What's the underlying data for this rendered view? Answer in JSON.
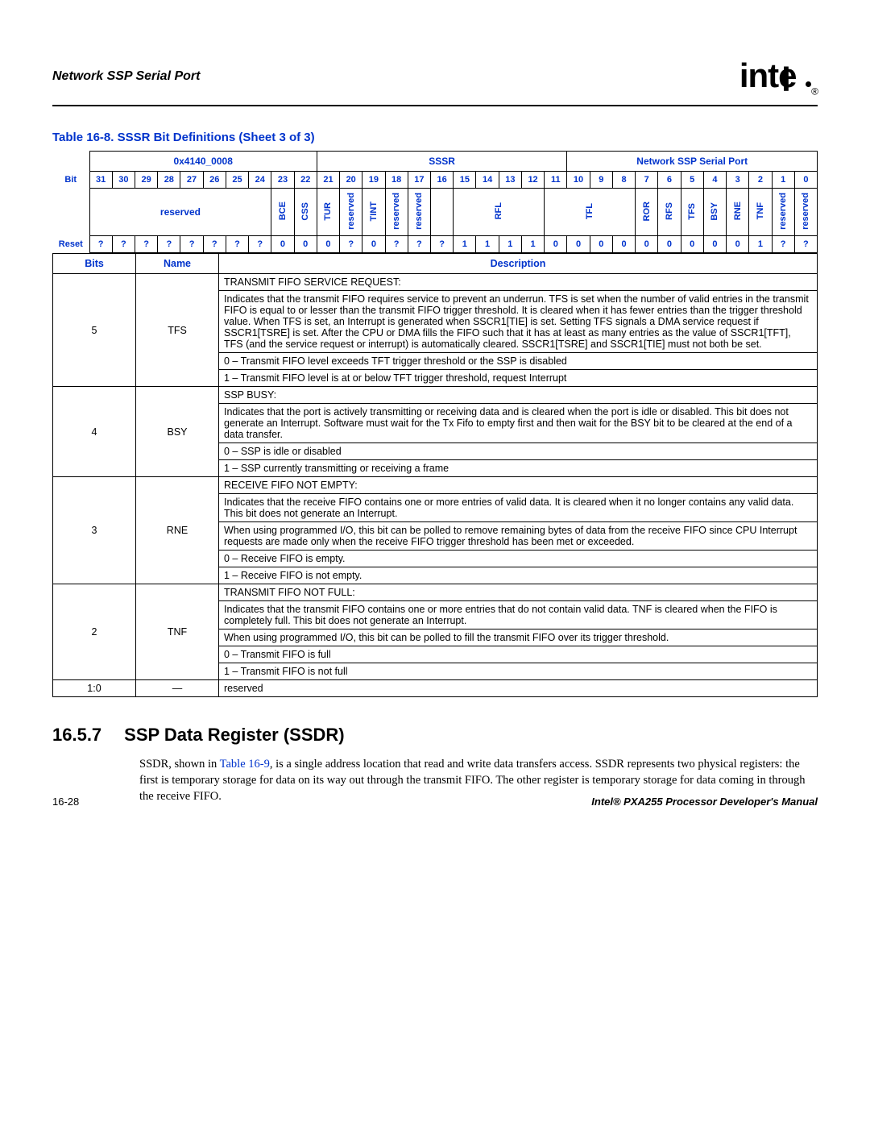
{
  "header": {
    "section": "Network SSP Serial Port",
    "logo": "intel",
    "registered": "®"
  },
  "table_caption": "Table 16-8. SSSR Bit Definitions (Sheet 3 of 3)",
  "reg_header": {
    "address": "0x4140_0008",
    "reg_name": "SSSR",
    "port_name": "Network SSP Serial Port"
  },
  "bit_label": "Bit",
  "reset_label": "Reset",
  "bits": [
    "31",
    "30",
    "29",
    "28",
    "27",
    "26",
    "25",
    "24",
    "23",
    "22",
    "21",
    "20",
    "19",
    "18",
    "17",
    "16",
    "15",
    "14",
    "13",
    "12",
    "11",
    "10",
    "9",
    "8",
    "7",
    "6",
    "5",
    "4",
    "3",
    "2",
    "1",
    "0"
  ],
  "fields": [
    {
      "span": 8,
      "label": "reserved",
      "vert": false
    },
    {
      "span": 1,
      "label": "BCE",
      "vert": true
    },
    {
      "span": 1,
      "label": "CSS",
      "vert": true
    },
    {
      "span": 1,
      "label": "TUR",
      "vert": true
    },
    {
      "span": 1,
      "label": "reserved",
      "vert": true
    },
    {
      "span": 1,
      "label": "TINT",
      "vert": true
    },
    {
      "span": 1,
      "label": "reserved",
      "vert": true
    },
    {
      "span": 1,
      "label": "reserved",
      "vert": true
    },
    {
      "span": 1,
      "label": "",
      "vert": false
    },
    {
      "span": 4,
      "label": "RFL",
      "vert": true
    },
    {
      "span": 4,
      "label": "TFL",
      "vert": true
    },
    {
      "span": 1,
      "label": "ROR",
      "vert": true
    },
    {
      "span": 1,
      "label": "RFS",
      "vert": true
    },
    {
      "span": 1,
      "label": "TFS",
      "vert": true
    },
    {
      "span": 1,
      "label": "BSY",
      "vert": true
    },
    {
      "span": 1,
      "label": "RNE",
      "vert": true
    },
    {
      "span": 1,
      "label": "TNF",
      "vert": true
    },
    {
      "span": 1,
      "label": "reserved",
      "vert": true
    },
    {
      "span": 1,
      "label": "reserved",
      "vert": true
    }
  ],
  "reset": [
    "?",
    "?",
    "?",
    "?",
    "?",
    "?",
    "?",
    "?",
    "0",
    "0",
    "0",
    "?",
    "0",
    "?",
    "?",
    "?",
    "1",
    "1",
    "1",
    "1",
    "0",
    "0",
    "0",
    "0",
    "0",
    "0",
    "0",
    "0",
    "0",
    "1",
    "?",
    "?"
  ],
  "desc_headers": {
    "bits": "Bits",
    "name": "Name",
    "desc": "Description"
  },
  "rows": [
    {
      "bits": "5",
      "name": "TFS",
      "lines": [
        "TRANSMIT FIFO SERVICE REQUEST:",
        "Indicates that the transmit FIFO requires service to prevent an underrun. TFS is set when the number of valid entries in the transmit FIFO is equal to or lesser than the transmit FIFO trigger threshold. It is cleared when it has fewer entries than the trigger threshold value. When TFS is set, an Interrupt is generated when SSCR1[TIE] is set. Setting TFS signals a DMA service request if SSCR1[TSRE] is set. After the CPU or DMA fills the FIFO such that it has at least as many entries as the value of SSCR1[TFT], TFS (and the service request or interrupt) is automatically cleared. SSCR1[TSRE] and SSCR1[TIE] must not both be set.",
        "0 –  Transmit FIFO level exceeds TFT trigger threshold or the SSP is disabled",
        "1 –  Transmit FIFO level is at or below TFT trigger threshold, request Interrupt"
      ]
    },
    {
      "bits": "4",
      "name": "BSY",
      "lines": [
        "SSP BUSY:",
        "Indicates that the port is actively transmitting or receiving data and is cleared when the port is idle or disabled. This bit does not generate an Interrupt. Software must wait for the Tx Fifo to empty first and then wait for the BSY bit to be cleared at the end of a data transfer.",
        "0 –  SSP is idle or disabled",
        "1 –  SSP currently transmitting or receiving a frame"
      ]
    },
    {
      "bits": "3",
      "name": "RNE",
      "lines": [
        "RECEIVE FIFO NOT EMPTY:",
        "Indicates that the receive FIFO contains one or more entries of valid data. It is cleared when it no longer contains any valid data. This bit does not generate an Interrupt.",
        "When using programmed I/O, this bit can be polled to remove remaining bytes of data from the receive FIFO since CPU Interrupt requests are made only when the receive FIFO trigger threshold has been met or exceeded.",
        "0 –  Receive FIFO is empty.",
        "1 –  Receive FIFO is not empty."
      ]
    },
    {
      "bits": "2",
      "name": "TNF",
      "lines": [
        "TRANSMIT FIFO NOT FULL:",
        "Indicates that the transmit FIFO contains one or more entries that do not contain valid data. TNF is cleared when the FIFO is completely full. This bit does not generate an Interrupt.",
        "When using programmed I/O, this bit can be polled to fill the transmit FIFO over its trigger threshold.",
        "0 –  Transmit FIFO is full",
        "1 –  Transmit FIFO is not full"
      ]
    },
    {
      "bits": "1:0",
      "name": "—",
      "lines": [
        "reserved"
      ]
    }
  ],
  "section": {
    "num": "16.5.7",
    "title": "SSP Data Register (SSDR)",
    "para_pre": "SSDR, shown in ",
    "link": "Table 16-9",
    "para_post": ", is a single address location that read and write data transfers access. SSDR represents two physical registers: the first is temporary storage for data on its way out through the transmit FIFO. The other register is temporary storage for data coming in through the receive FIFO."
  },
  "footer": {
    "page": "16-28",
    "manual": "Intel® PXA255 Processor Developer's Manual"
  },
  "colors": {
    "blue": "#0033cc"
  }
}
